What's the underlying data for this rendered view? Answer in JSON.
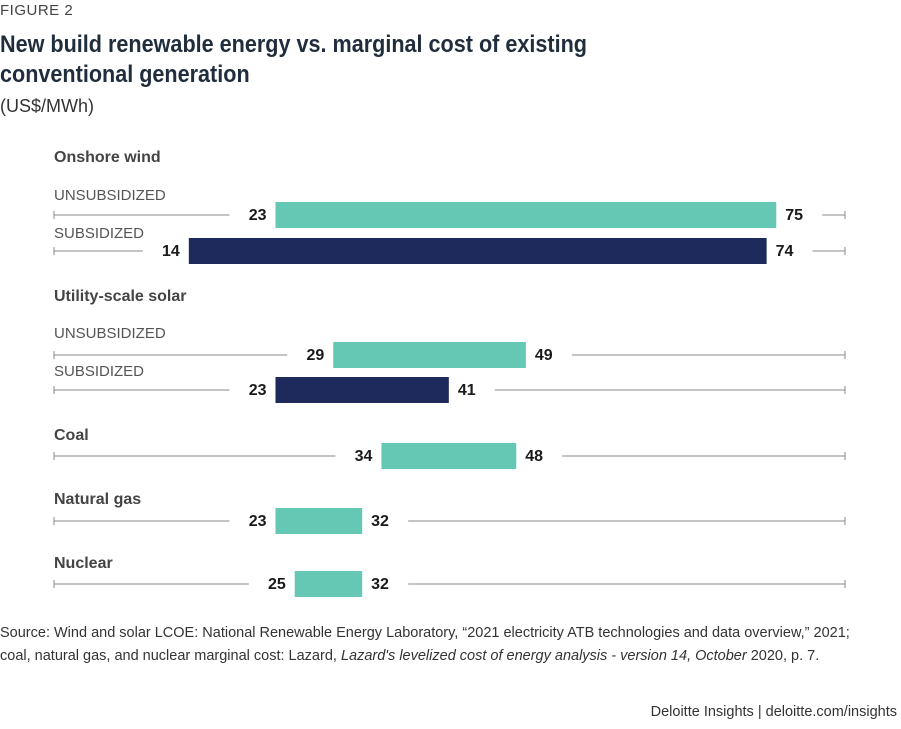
{
  "figure_label": "FIGURE 2",
  "title": "New build renewable energy vs. marginal cost of existing conventional generation",
  "subtitle": "(US$/MWh)",
  "colors": {
    "unsubsidized": "#64c8b4",
    "subsidized": "#1f2a5c",
    "axis": "#888888"
  },
  "chart_data": {
    "type": "bar",
    "orientation": "horizontal-range",
    "unit": "US$/MWh",
    "groups": [
      {
        "name": "Onshore wind",
        "rows": [
          {
            "label": "UNSUBSIDIZED",
            "series": "unsubsidized",
            "low": 23,
            "high": 75
          },
          {
            "label": "SUBSIDIZED",
            "series": "subsidized",
            "low": 14,
            "high": 74
          }
        ]
      },
      {
        "name": "Utility-scale solar",
        "rows": [
          {
            "label": "UNSUBSIDIZED",
            "series": "unsubsidized",
            "low": 29,
            "high": 49
          },
          {
            "label": "SUBSIDIZED",
            "series": "subsidized",
            "low": 23,
            "high": 41
          }
        ]
      },
      {
        "name": "Coal",
        "rows": [
          {
            "label": "",
            "series": "unsubsidized",
            "low": 34,
            "high": 48
          }
        ]
      },
      {
        "name": "Natural gas",
        "rows": [
          {
            "label": "",
            "series": "unsubsidized",
            "low": 23,
            "high": 32
          }
        ]
      },
      {
        "name": "Nuclear",
        "rows": [
          {
            "label": "",
            "series": "unsubsidized",
            "low": 25,
            "high": 32
          }
        ]
      }
    ],
    "xlim": [
      0,
      80
    ]
  },
  "source": {
    "prefix": "Source: Wind and solar LCOE: National Renewable Energy Laboratory, “2021 electricity ATB technologies and data overview,” 2021; coal, natural gas, and nuclear marginal cost: Lazard, ",
    "italic": "Lazard's levelized cost of energy analysis - version 14, October",
    "suffix": " 2020, p. 7."
  },
  "footer": "Deloitte Insights | deloitte.com/insights"
}
